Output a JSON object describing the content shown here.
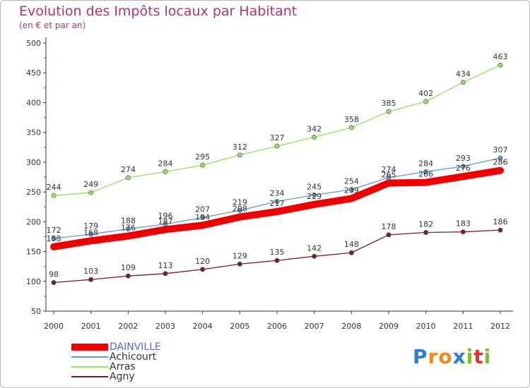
{
  "title": "Evolution des Impôts locaux par Habitant",
  "subtitle": "(en € et par an)",
  "logo": {
    "text": "Proxiti",
    "letters": [
      {
        "ch": "P",
        "color": "#2a7fd4"
      },
      {
        "ch": "r",
        "color": "#f08a1c"
      },
      {
        "ch": "o",
        "color": "#f08a1c"
      },
      {
        "ch": "x",
        "color": "#2a7fd4"
      },
      {
        "ch": "i",
        "color": "#7cbf2a"
      },
      {
        "ch": "t",
        "color": "#e2342b"
      },
      {
        "ch": "i",
        "color": "#7cbf2a"
      }
    ]
  },
  "chart_data": {
    "type": "line",
    "title": "Evolution des Impôts locaux par Habitant",
    "subtitle": "(en € et par an)",
    "xlabel": "",
    "ylabel": "",
    "x": [
      "2000",
      "2001",
      "2002",
      "2003",
      "2004",
      "2005",
      "2006",
      "2007",
      "2008",
      "2009",
      "2010",
      "2011",
      "2012"
    ],
    "ylim": [
      50,
      500
    ],
    "yticks": [
      50,
      100,
      150,
      200,
      250,
      300,
      350,
      400,
      450,
      500
    ],
    "grid": false,
    "legend_position": "bottom-left",
    "series": [
      {
        "name": "DAINVILLE",
        "color": "#ee0000",
        "thick": true,
        "values": [
          158,
          168,
          176,
          187,
          194,
          208,
          217,
          229,
          239,
          265,
          266,
          276,
          286
        ]
      },
      {
        "name": "Achicourt",
        "color": "#6699cc",
        "thick": false,
        "values": [
          172,
          179,
          188,
          196,
          207,
          219,
          234,
          245,
          254,
          274,
          284,
          293,
          307
        ]
      },
      {
        "name": "Arras",
        "color": "#99dd66",
        "thick": false,
        "values": [
          244,
          249,
          274,
          284,
          295,
          312,
          327,
          342,
          358,
          385,
          402,
          434,
          463
        ]
      },
      {
        "name": "Agny",
        "color": "#772222",
        "thick": false,
        "values": [
          98,
          103,
          109,
          113,
          120,
          129,
          135,
          142,
          148,
          178,
          182,
          183,
          186
        ]
      }
    ]
  }
}
